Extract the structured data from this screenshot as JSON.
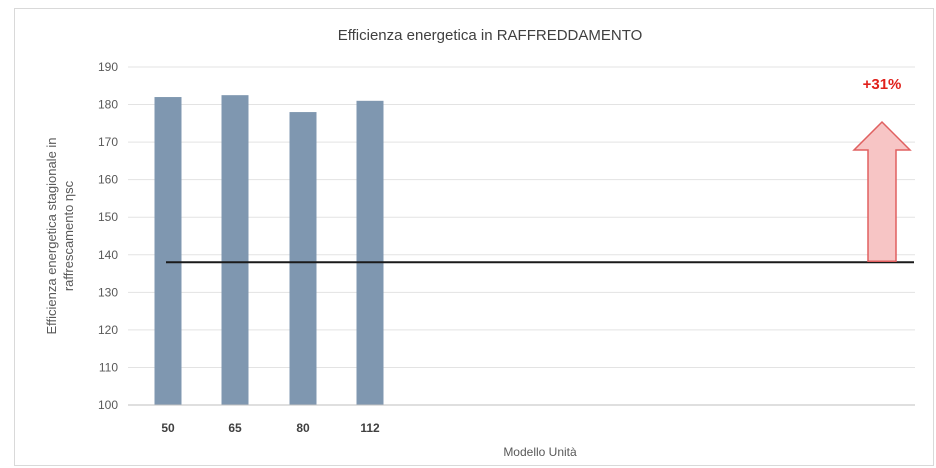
{
  "chart_data": {
    "type": "bar",
    "title": "Efficienza energetica in RAFFREDDAMENTO",
    "xlabel": "Modello Unità",
    "ylabel_lines": [
      "Efficienza energetica stagionale in",
      "raffrescamento ηsc"
    ],
    "categories": [
      "50",
      "65",
      "80",
      "112"
    ],
    "values": [
      182,
      182.5,
      178,
      181
    ],
    "ylim": [
      100,
      190
    ],
    "yticks": [
      100,
      110,
      120,
      130,
      140,
      150,
      160,
      170,
      180,
      190
    ],
    "grid": true,
    "reference_line": 138,
    "annotation": "+31%",
    "colors": {
      "bar": "#7f97b0",
      "reference_line": "#1a1a1a",
      "arrow_fill": "#f7c5c5",
      "arrow_stroke": "#e06060",
      "annotation": "#e0201b",
      "grid": "#e3e3e3"
    }
  }
}
